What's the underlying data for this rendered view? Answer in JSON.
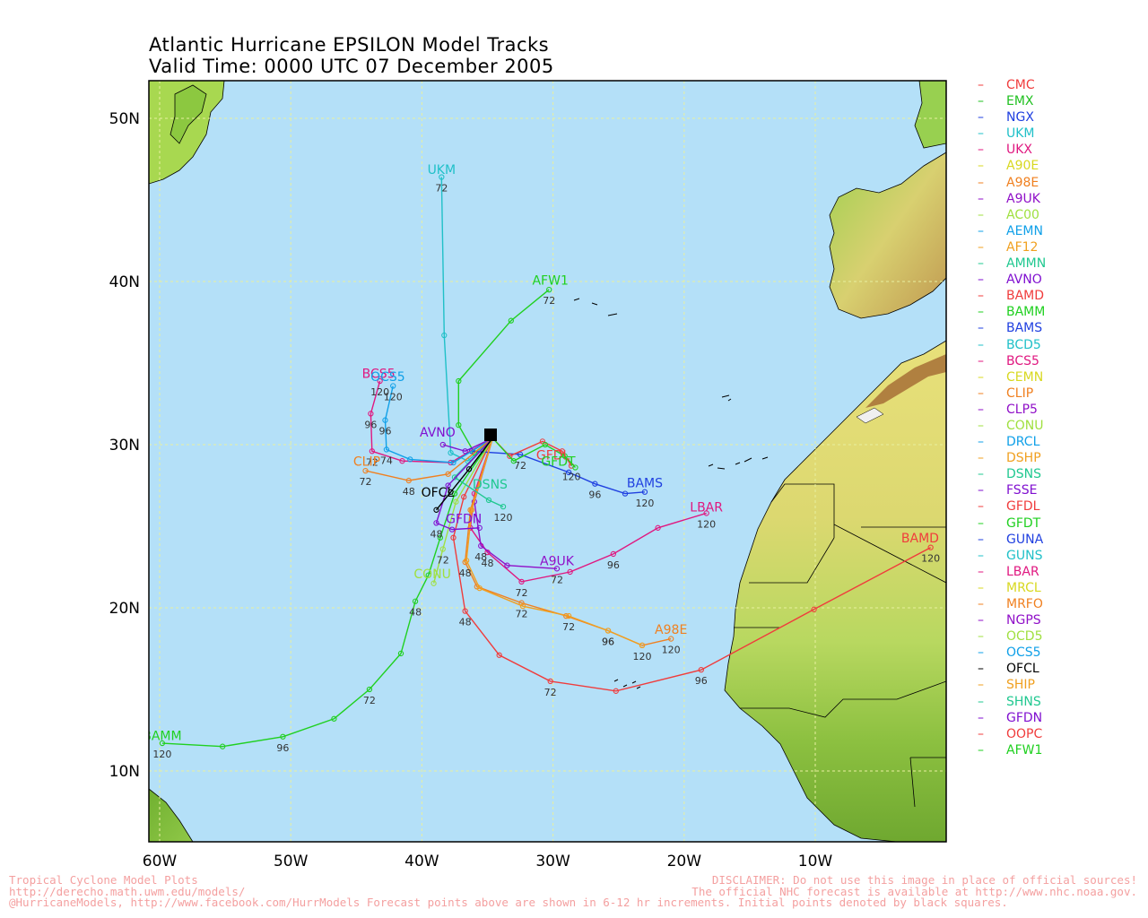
{
  "title": {
    "line1": "Atlantic Hurricane EPSILON Model Tracks",
    "line2": "Valid Time: 0000 UTC 07 December 2005"
  },
  "axes": {
    "lat_labels": [
      "50N",
      "40N",
      "30N",
      "20N",
      "10N"
    ],
    "lon_labels": [
      "60W",
      "50W",
      "40W",
      "30W",
      "20W",
      "10W"
    ]
  },
  "colors": {
    "ocean": "#b4e0f8",
    "grid": "#e8f0a0"
  },
  "legend": [
    {
      "name": "CMC",
      "color": "#f03c3c"
    },
    {
      "name": "EMX",
      "color": "#20c020"
    },
    {
      "name": "NGX",
      "color": "#2040e0"
    },
    {
      "name": "UKM",
      "color": "#20c0c8"
    },
    {
      "name": "UKX",
      "color": "#e01880"
    },
    {
      "name": "A90E",
      "color": "#d8d820"
    },
    {
      "name": "A98E",
      "color": "#f08020"
    },
    {
      "name": "A9UK",
      "color": "#9010c8"
    },
    {
      "name": "AC00",
      "color": "#a0e040"
    },
    {
      "name": "AEMN",
      "color": "#10a0e8"
    },
    {
      "name": "AF12",
      "color": "#f0a020"
    },
    {
      "name": "AMMN",
      "color": "#20c890"
    },
    {
      "name": "AVNO",
      "color": "#8010d0"
    },
    {
      "name": "BAMD",
      "color": "#f03c3c"
    },
    {
      "name": "BAMM",
      "color": "#20d020"
    },
    {
      "name": "BAMS",
      "color": "#2040e0"
    },
    {
      "name": "BCD5",
      "color": "#20c0c8"
    },
    {
      "name": "BCS5",
      "color": "#e01880"
    },
    {
      "name": "CEMN",
      "color": "#d8d820"
    },
    {
      "name": "CLIP",
      "color": "#f08020"
    },
    {
      "name": "CLP5",
      "color": "#9010c8"
    },
    {
      "name": "CONU",
      "color": "#a0e040"
    },
    {
      "name": "DRCL",
      "color": "#10a0e8"
    },
    {
      "name": "DSHP",
      "color": "#f0a020"
    },
    {
      "name": "DSNS",
      "color": "#20c890"
    },
    {
      "name": "FSSE",
      "color": "#8010d0"
    },
    {
      "name": "GFDL",
      "color": "#f03c3c"
    },
    {
      "name": "GFDT",
      "color": "#20d020"
    },
    {
      "name": "GUNA",
      "color": "#2040e0"
    },
    {
      "name": "GUNS",
      "color": "#20c0c8"
    },
    {
      "name": "LBAR",
      "color": "#e01880"
    },
    {
      "name": "MRCL",
      "color": "#d8d820"
    },
    {
      "name": "MRFO",
      "color": "#f08020"
    },
    {
      "name": "NGPS",
      "color": "#9010c8"
    },
    {
      "name": "OCD5",
      "color": "#a0e040"
    },
    {
      "name": "OCS5",
      "color": "#10a0e8"
    },
    {
      "name": "OFCL",
      "color": "#000000"
    },
    {
      "name": "SHIP",
      "color": "#f0a020"
    },
    {
      "name": "SHNS",
      "color": "#20c890"
    },
    {
      "name": "GFDN",
      "color": "#8010d0"
    },
    {
      "name": "OOPC",
      "color": "#f03c3c"
    },
    {
      "name": "AFW1",
      "color": "#20d020"
    }
  ],
  "track_labels": [
    {
      "text": "UKM",
      "color": "#20c0c8",
      "lon": -38.5,
      "lat": 46.6
    },
    {
      "text": "AFW1",
      "color": "#20d020",
      "lon": -30.2,
      "lat": 39.8
    },
    {
      "text": "BCS5",
      "color": "#e01880",
      "lon": -43.3,
      "lat": 34.1
    },
    {
      "text": "OCS5",
      "color": "#10a0e8",
      "lon": -42.6,
      "lat": 33.9
    },
    {
      "text": "AVNO",
      "color": "#8010d0",
      "lon": -38.8,
      "lat": 30.5
    },
    {
      "text": "CLIP",
      "color": "#f08020",
      "lon": -44.2,
      "lat": 28.7
    },
    {
      "text": "BAMS",
      "color": "#2040e0",
      "lon": -23.0,
      "lat": 27.4
    },
    {
      "text": "LBAR",
      "color": "#e01880",
      "lon": -18.3,
      "lat": 25.9
    },
    {
      "text": "BAMD",
      "color": "#f03c3c",
      "lon": -2.0,
      "lat": 24.0
    },
    {
      "text": "GFDL",
      "color": "#f03c3c",
      "lon": -30.0,
      "lat": 29.1
    },
    {
      "text": "GFDT",
      "color": "#20d020",
      "lon": -29.6,
      "lat": 28.7
    },
    {
      "text": "A9UK",
      "color": "#9010c8",
      "lon": -29.7,
      "lat": 22.6
    },
    {
      "text": "CONU",
      "color": "#a0e040",
      "lon": -39.2,
      "lat": 21.8
    },
    {
      "text": "A98E",
      "color": "#f08020",
      "lon": -21.0,
      "lat": 18.4
    },
    {
      "text": "BAMM",
      "color": "#20d020",
      "lon": -59.8,
      "lat": 11.9
    },
    {
      "text": "DSNS",
      "color": "#20c890",
      "lon": -34.8,
      "lat": 27.3
    },
    {
      "text": "OFCL",
      "color": "#000000",
      "lon": -38.8,
      "lat": 26.8
    },
    {
      "text": "GFDN",
      "color": "#8010d0",
      "lon": -36.8,
      "lat": 25.2
    }
  ],
  "tracks": [
    {
      "model": "UKM",
      "color": "#20c0c8",
      "points": [
        [
          -34.6,
          30.4
        ],
        [
          -36.5,
          29.0
        ],
        [
          -37.8,
          29.5
        ],
        [
          -38.3,
          36.7
        ],
        [
          -38.5,
          46.4
        ]
      ],
      "hours": [
        {
          "i": 4,
          "h": "72"
        }
      ]
    },
    {
      "model": "AFW1",
      "color": "#20d020",
      "points": [
        [
          -34.6,
          30.4
        ],
        [
          -36.0,
          29.5
        ],
        [
          -37.2,
          31.2
        ],
        [
          -37.2,
          33.9
        ],
        [
          -33.2,
          37.6
        ],
        [
          -30.3,
          39.5
        ]
      ],
      "hours": [
        {
          "i": 5,
          "h": "72"
        }
      ]
    },
    {
      "model": "BAMM",
      "color": "#20d020",
      "points": [
        [
          -34.6,
          30.4
        ],
        [
          -37.5,
          27.0
        ],
        [
          -38.6,
          24.3
        ],
        [
          -39.5,
          22.0
        ],
        [
          -40.5,
          20.4
        ],
        [
          -41.6,
          17.2
        ],
        [
          -44.0,
          15.0
        ],
        [
          -46.7,
          13.2
        ],
        [
          -50.6,
          12.1
        ],
        [
          -55.2,
          11.5
        ],
        [
          -59.8,
          11.7
        ]
      ],
      "hours": [
        {
          "i": 4,
          "h": "48"
        },
        {
          "i": 6,
          "h": "72"
        },
        {
          "i": 8,
          "h": "96"
        },
        {
          "i": 10,
          "h": "120"
        }
      ]
    },
    {
      "model": "BAMD",
      "color": "#f03c3c",
      "points": [
        [
          -34.6,
          30.4
        ],
        [
          -36.8,
          26.8
        ],
        [
          -37.6,
          24.3
        ],
        [
          -36.7,
          19.8
        ],
        [
          -34.1,
          17.1
        ],
        [
          -30.2,
          15.5
        ],
        [
          -25.2,
          14.9
        ],
        [
          -18.7,
          16.2
        ],
        [
          -10.1,
          19.9
        ],
        [
          -1.2,
          23.7
        ]
      ],
      "hours": [
        {
          "i": 3,
          "h": "48"
        },
        {
          "i": 5,
          "h": "72"
        },
        {
          "i": 7,
          "h": "96"
        },
        {
          "i": 9,
          "h": "120"
        }
      ]
    },
    {
      "model": "LBAR",
      "color": "#e01880",
      "points": [
        [
          -34.6,
          30.4
        ],
        [
          -36.0,
          27.0
        ],
        [
          -36.3,
          24.9
        ],
        [
          -35.0,
          23.4
        ],
        [
          -32.4,
          21.6
        ],
        [
          -28.7,
          22.2
        ],
        [
          -25.4,
          23.3
        ],
        [
          -22.0,
          24.9
        ],
        [
          -18.3,
          25.8
        ]
      ],
      "hours": [
        {
          "i": 3,
          "h": "48"
        },
        {
          "i": 4,
          "h": "72"
        },
        {
          "i": 6,
          "h": "96"
        },
        {
          "i": 8,
          "h": "120"
        }
      ]
    },
    {
      "model": "BAMS",
      "color": "#2040e0",
      "points": [
        [
          -34.6,
          30.4
        ],
        [
          -36.2,
          29.6
        ],
        [
          -32.5,
          29.4
        ],
        [
          -28.8,
          28.3
        ],
        [
          -26.8,
          27.6
        ],
        [
          -24.5,
          27.0
        ],
        [
          -23.0,
          27.1
        ]
      ],
      "hours": [
        {
          "i": 2,
          "h": "72"
        },
        {
          "i": 4,
          "h": "96"
        },
        {
          "i": 6,
          "h": "120"
        }
      ]
    },
    {
      "model": "A9UK",
      "color": "#9010c8",
      "points": [
        [
          -34.6,
          30.4
        ],
        [
          -36.0,
          26.5
        ],
        [
          -35.5,
          23.8
        ],
        [
          -33.5,
          22.6
        ],
        [
          -29.7,
          22.4
        ]
      ],
      "hours": [
        {
          "i": 2,
          "h": "48"
        },
        {
          "i": 4,
          "h": "72"
        }
      ]
    },
    {
      "model": "A98E",
      "color": "#f08020",
      "points": [
        [
          -34.6,
          30.4
        ],
        [
          -36.3,
          26.0
        ],
        [
          -36.7,
          22.8
        ],
        [
          -35.8,
          21.3
        ],
        [
          -32.4,
          20.3
        ],
        [
          -29.0,
          19.5
        ],
        [
          -25.8,
          18.6
        ],
        [
          -23.2,
          17.7
        ],
        [
          -21.0,
          18.1
        ]
      ],
      "hours": [
        {
          "i": 2,
          "h": "48"
        },
        {
          "i": 4,
          "h": "72"
        },
        {
          "i": 6,
          "h": "96"
        },
        {
          "i": 8,
          "h": "120"
        }
      ]
    },
    {
      "model": "SHIP",
      "color": "#f0a020",
      "points": [
        [
          -34.6,
          30.4
        ],
        [
          -36.2,
          26.0
        ],
        [
          -36.6,
          22.9
        ],
        [
          -35.6,
          21.2
        ],
        [
          -32.3,
          20.1
        ],
        [
          -28.8,
          19.5
        ],
        [
          -25.8,
          18.6
        ],
        [
          -23.2,
          17.7
        ]
      ],
      "hours": [
        {
          "i": 5,
          "h": "72"
        },
        {
          "i": 6,
          "h": "96"
        },
        {
          "i": 7,
          "h": "120"
        }
      ]
    },
    {
      "model": "GFDL",
      "color": "#f03c3c",
      "points": [
        [
          -34.6,
          30.4
        ],
        [
          -33.3,
          29.3
        ],
        [
          -30.8,
          30.2
        ],
        [
          -29.3,
          29.6
        ],
        [
          -28.6,
          28.7
        ]
      ],
      "hours": [
        {
          "i": 4,
          "h": "120"
        }
      ]
    },
    {
      "model": "GFDT",
      "color": "#20d020",
      "points": [
        [
          -34.6,
          30.4
        ],
        [
          -33.0,
          29.0
        ],
        [
          -30.6,
          30.0
        ],
        [
          -29.1,
          29.3
        ],
        [
          -28.3,
          28.6
        ]
      ],
      "hours": []
    },
    {
      "model": "BCS5",
      "color": "#e01880",
      "points": [
        [
          -34.6,
          30.4
        ],
        [
          -37.8,
          28.9
        ],
        [
          -41.5,
          29.0
        ],
        [
          -43.8,
          29.6
        ],
        [
          -43.9,
          31.9
        ],
        [
          -43.2,
          33.9
        ]
      ],
      "hours": [
        {
          "i": 3,
          "h": "72"
        },
        {
          "i": 4,
          "h": "96"
        },
        {
          "i": 5,
          "h": "120"
        }
      ]
    },
    {
      "model": "OCS5",
      "color": "#10a0e8",
      "points": [
        [
          -34.6,
          30.4
        ],
        [
          -37.6,
          28.9
        ],
        [
          -40.9,
          29.1
        ],
        [
          -42.7,
          29.7
        ],
        [
          -42.8,
          31.5
        ],
        [
          -42.2,
          33.6
        ]
      ],
      "hours": [
        {
          "i": 3,
          "h": "74"
        },
        {
          "i": 4,
          "h": "96"
        },
        {
          "i": 5,
          "h": "120"
        }
      ]
    },
    {
      "model": "CLIP",
      "color": "#f08020",
      "points": [
        [
          -34.6,
          30.4
        ],
        [
          -38.0,
          28.2
        ],
        [
          -41.0,
          27.8
        ],
        [
          -44.3,
          28.4
        ]
      ],
      "hours": [
        {
          "i": 2,
          "h": "48"
        },
        {
          "i": 3,
          "h": "72"
        }
      ]
    },
    {
      "model": "AVNO",
      "color": "#8010d0",
      "points": [
        [
          -34.6,
          30.4
        ],
        [
          -36.7,
          29.6
        ],
        [
          -38.4,
          30.0
        ]
      ],
      "hours": []
    },
    {
      "model": "CONU",
      "color": "#a0e040",
      "points": [
        [
          -34.6,
          30.4
        ],
        [
          -37.4,
          26.5
        ],
        [
          -38.4,
          23.6
        ],
        [
          -39.1,
          21.5
        ]
      ],
      "hours": [
        {
          "i": 2,
          "h": "72"
        }
      ]
    },
    {
      "model": "DSNS",
      "color": "#20c890",
      "points": [
        [
          -34.6,
          30.4
        ],
        [
          -37.5,
          28.0
        ],
        [
          -34.9,
          26.6
        ],
        [
          -33.8,
          26.2
        ]
      ],
      "hours": [
        {
          "i": 3,
          "h": "120"
        }
      ]
    },
    {
      "model": "GFDN",
      "color": "#8010d0",
      "points": [
        [
          -34.6,
          30.4
        ],
        [
          -38.0,
          27.5
        ],
        [
          -38.9,
          25.2
        ],
        [
          -37.7,
          24.8
        ],
        [
          -35.6,
          24.9
        ]
      ],
      "hours": [
        {
          "i": 2,
          "h": "48"
        }
      ]
    },
    {
      "model": "OFCL",
      "color": "#000000",
      "points": [
        [
          -34.6,
          30.4
        ],
        [
          -36.4,
          28.5
        ],
        [
          -37.8,
          27.1
        ],
        [
          -38.9,
          26.0
        ]
      ],
      "hours": []
    }
  ]
}
